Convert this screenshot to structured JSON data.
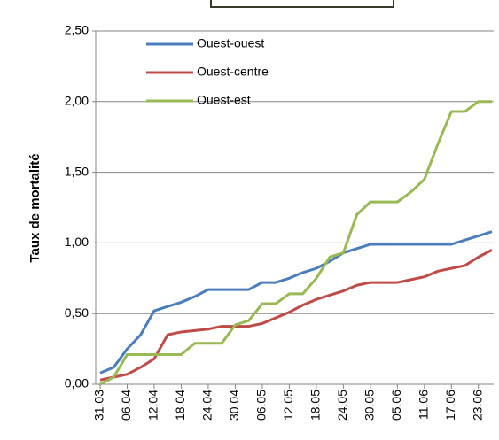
{
  "chart_data": {
    "type": "line",
    "y_label": "Taux de mortalité",
    "categories": [
      "31.03",
      null,
      "06.04",
      null,
      "12.04",
      null,
      "18.04",
      null,
      "24.04",
      null,
      "30.04",
      null,
      "06.05",
      null,
      "12.05",
      null,
      "18.05",
      null,
      "24.05",
      null,
      "30.05",
      null,
      "05.06",
      null,
      "11.06",
      null,
      "17.06",
      null,
      "23.06",
      null
    ],
    "series": [
      {
        "name": "Ouest-ouest",
        "color": "#4a7ebb",
        "values": [
          0.08,
          0.12,
          0.25,
          0.35,
          0.52,
          0.55,
          0.58,
          0.62,
          0.67,
          0.67,
          0.67,
          0.67,
          0.72,
          0.72,
          0.75,
          0.79,
          0.82,
          0.87,
          0.93,
          0.96,
          0.99,
          0.99,
          0.99,
          0.99,
          0.99,
          0.99,
          0.99,
          1.02,
          1.05,
          1.08
        ]
      },
      {
        "name": "Ouest-centre",
        "color": "#be4b48",
        "values": [
          0.03,
          0.05,
          0.07,
          0.12,
          0.18,
          0.35,
          0.37,
          0.38,
          0.39,
          0.41,
          0.41,
          0.41,
          0.43,
          0.47,
          0.51,
          0.56,
          0.6,
          0.63,
          0.66,
          0.7,
          0.72,
          0.72,
          0.72,
          0.74,
          0.76,
          0.8,
          0.82,
          0.84,
          0.9,
          0.95
        ]
      },
      {
        "name": "Ouest-est",
        "color": "#98b954",
        "values": [
          0.0,
          0.05,
          0.21,
          0.21,
          0.21,
          0.21,
          0.21,
          0.29,
          0.29,
          0.29,
          0.42,
          0.45,
          0.57,
          0.57,
          0.64,
          0.64,
          0.75,
          0.9,
          0.93,
          1.2,
          1.29,
          1.29,
          1.29,
          1.36,
          1.45,
          1.7,
          1.93,
          1.93,
          2.0,
          2.0
        ]
      }
    ],
    "ylim": [
      0,
      2.5
    ],
    "yticks": [
      {
        "value": 0,
        "label": "0,00"
      },
      {
        "value": 0.5,
        "label": "0,50"
      },
      {
        "value": 1,
        "label": "1,00"
      },
      {
        "value": 1.5,
        "label": "1,50"
      },
      {
        "value": 2,
        "label": "2,00"
      },
      {
        "value": 2.5,
        "label": "2,50"
      }
    ],
    "grid": true,
    "legend": "upper left"
  }
}
